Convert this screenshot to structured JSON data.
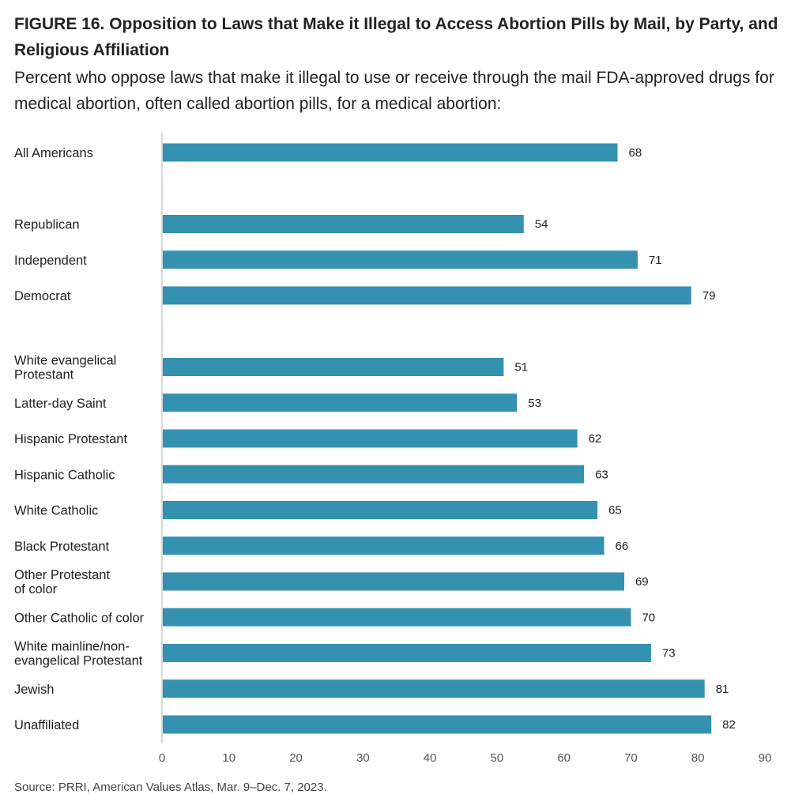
{
  "header": {
    "title": "FIGURE 16. Opposition to Laws that Make it Illegal to Access Abortion Pills by Mail, by Party, and Religious Affiliation",
    "subtitle": "Percent who oppose laws that make it illegal to use or receive through the mail FDA-approved drugs for medical abortion, often called abortion pills, for a medical abortion:"
  },
  "footer": {
    "source": "Source: PRRI, American Values Atlas, Mar. 9–Dec. 7, 2023."
  },
  "colors": {
    "bar": "#3492b0",
    "axis": "#d9d9d9"
  },
  "chart_data": {
    "type": "bar",
    "orientation": "horizontal",
    "title": "FIGURE 16. Opposition to Laws that Make it Illegal to Access Abortion Pills by Mail, by Party, and Religious Affiliation",
    "subtitle": "Percent who oppose laws that make it illegal to use or receive through the mail FDA-approved drugs for medical abortion, often called abortion pills, for a medical abortion:",
    "xlabel": "",
    "ylabel": "",
    "xlim": [
      0,
      90
    ],
    "xticks": [
      0,
      10,
      20,
      30,
      40,
      50,
      60,
      70,
      80,
      90
    ],
    "grid": false,
    "groups": [
      {
        "items": [
          {
            "label": "All Americans",
            "value": 68
          }
        ]
      },
      {
        "items": [
          {
            "label": "Republican",
            "value": 54
          },
          {
            "label": "Independent",
            "value": 71
          },
          {
            "label": "Democrat",
            "value": 79
          }
        ]
      },
      {
        "items": [
          {
            "label": "White evangelical\nProtestant",
            "value": 51
          },
          {
            "label": "Latter-day Saint",
            "value": 53
          },
          {
            "label": "Hispanic Protestant",
            "value": 62
          },
          {
            "label": "Hispanic Catholic",
            "value": 63
          },
          {
            "label": "White Catholic",
            "value": 65
          },
          {
            "label": "Black Protestant",
            "value": 66
          },
          {
            "label": "Other Protestant\nof color",
            "value": 69
          },
          {
            "label": "Other Catholic of color",
            "value": 70
          },
          {
            "label": "White mainline/non-\nevangelical Protestant",
            "value": 73
          },
          {
            "label": "Jewish",
            "value": 81
          },
          {
            "label": "Unaffiliated",
            "value": 82
          }
        ]
      }
    ]
  }
}
